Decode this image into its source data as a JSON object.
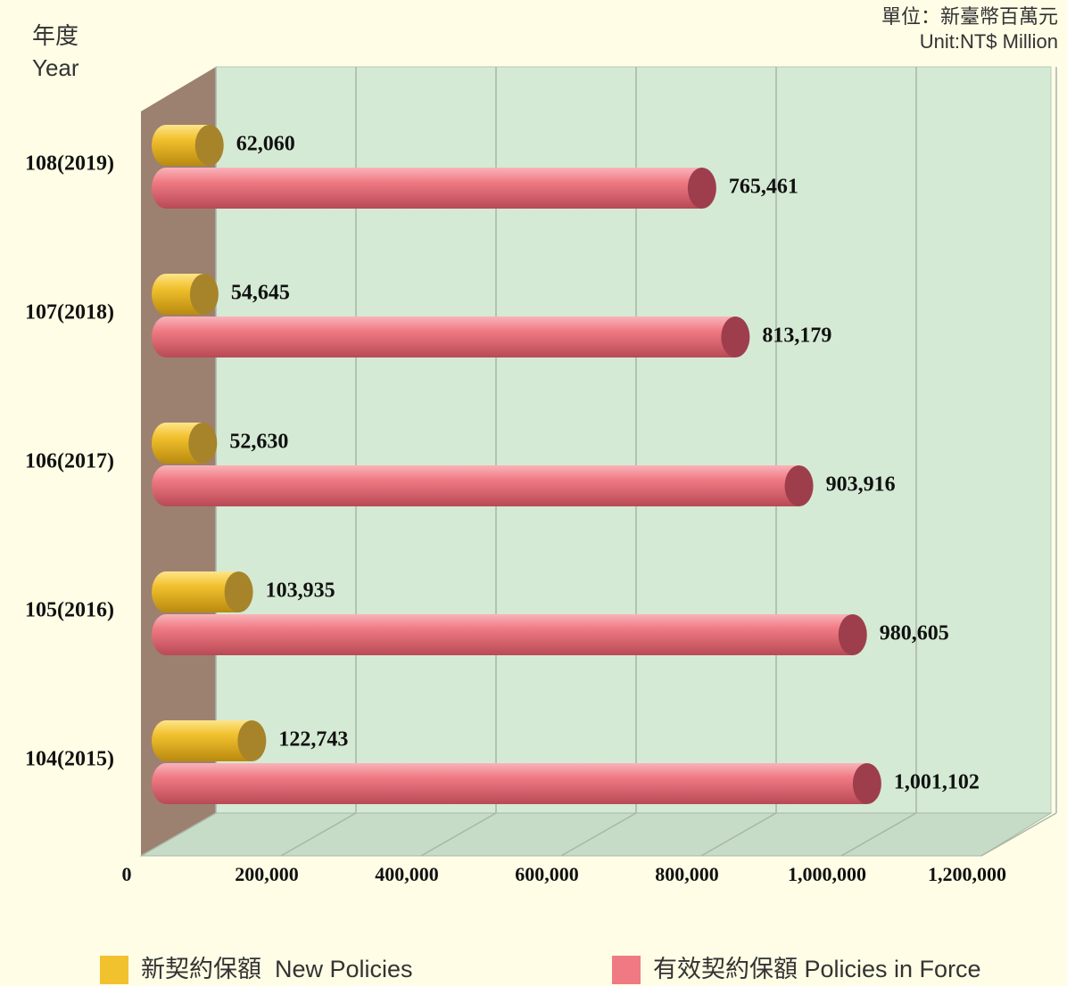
{
  "chart_data": {
    "type": "bar",
    "orientation": "horizontal",
    "unit_label": "單位：新臺幣百萬元",
    "unit_label_en": "Unit:NT$ Million",
    "y_label": "年度",
    "y_label_en": "Year",
    "categories": [
      "108(2019)",
      "107(2018)",
      "106(2017)",
      "105(2016)",
      "104(2015)"
    ],
    "series": [
      {
        "name": "新契約保額  New Policies",
        "color": "#f2c12e",
        "values": [
          62060,
          54645,
          52630,
          103935,
          122743
        ],
        "value_labels": [
          "62,060",
          "54,645",
          "52,630",
          "103,935",
          "122,743"
        ]
      },
      {
        "name": "有效契約保額 Policies in Force",
        "color": "#f07a84",
        "values": [
          765461,
          813179,
          903916,
          980605,
          1001102
        ],
        "value_labels": [
          "765,461",
          "813,179",
          "903,916",
          "980,605",
          "1,001,102"
        ]
      }
    ],
    "xlim": [
      0,
      1200000
    ],
    "xticks": [
      0,
      {
        "value": 200000,
        "label": "200,000"
      },
      {
        "value": 400000,
        "label": "400,000"
      },
      {
        "value": 600000,
        "label": "600,000"
      },
      {
        "value": 800000,
        "label": "800,000"
      },
      {
        "value": 1000000,
        "label": "1,000,000"
      },
      {
        "value": 1200000,
        "label": "1,200,000"
      }
    ],
    "grid": true
  }
}
